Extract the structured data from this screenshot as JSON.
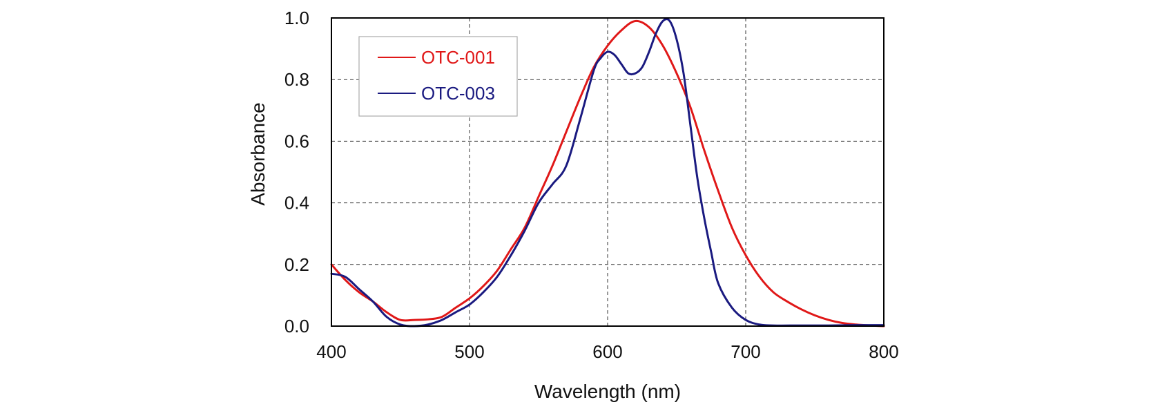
{
  "chart_data": {
    "type": "line",
    "title": "",
    "xlabel": "Wavelength (nm)",
    "ylabel": "Absorbance",
    "xlim": [
      400,
      800
    ],
    "ylim": [
      0.0,
      1.0
    ],
    "grid": true,
    "legend_position": "top-left",
    "x_tick_labels": [
      "400",
      "500",
      "600",
      "700",
      "800"
    ],
    "y_tick_labels": [
      "0.0",
      "0.2",
      "0.4",
      "0.6",
      "0.8",
      "1.0"
    ],
    "series": [
      {
        "name": "OTC-001",
        "color": "#e01818",
        "points": [
          [
            400,
            0.2
          ],
          [
            410,
            0.15
          ],
          [
            420,
            0.11
          ],
          [
            430,
            0.08
          ],
          [
            440,
            0.045
          ],
          [
            450,
            0.02
          ],
          [
            460,
            0.02
          ],
          [
            470,
            0.022
          ],
          [
            480,
            0.03
          ],
          [
            490,
            0.06
          ],
          [
            500,
            0.09
          ],
          [
            510,
            0.13
          ],
          [
            520,
            0.18
          ],
          [
            530,
            0.25
          ],
          [
            540,
            0.32
          ],
          [
            550,
            0.42
          ],
          [
            560,
            0.52
          ],
          [
            570,
            0.63
          ],
          [
            580,
            0.74
          ],
          [
            590,
            0.84
          ],
          [
            600,
            0.91
          ],
          [
            610,
            0.96
          ],
          [
            620,
            0.99
          ],
          [
            630,
            0.97
          ],
          [
            640,
            0.91
          ],
          [
            650,
            0.82
          ],
          [
            660,
            0.71
          ],
          [
            670,
            0.57
          ],
          [
            680,
            0.44
          ],
          [
            690,
            0.32
          ],
          [
            700,
            0.23
          ],
          [
            710,
            0.16
          ],
          [
            720,
            0.11
          ],
          [
            730,
            0.08
          ],
          [
            740,
            0.055
          ],
          [
            750,
            0.035
          ],
          [
            760,
            0.02
          ],
          [
            770,
            0.01
          ],
          [
            780,
            0.005
          ],
          [
            790,
            0.002
          ],
          [
            800,
            0.0
          ]
        ]
      },
      {
        "name": "OTC-003",
        "color": "#1a1a80",
        "points": [
          [
            400,
            0.17
          ],
          [
            410,
            0.16
          ],
          [
            420,
            0.12
          ],
          [
            430,
            0.08
          ],
          [
            440,
            0.03
          ],
          [
            450,
            0.005
          ],
          [
            460,
            0.0
          ],
          [
            470,
            0.005
          ],
          [
            480,
            0.02
          ],
          [
            490,
            0.045
          ],
          [
            500,
            0.07
          ],
          [
            510,
            0.11
          ],
          [
            520,
            0.16
          ],
          [
            530,
            0.23
          ],
          [
            540,
            0.31
          ],
          [
            550,
            0.4
          ],
          [
            560,
            0.46
          ],
          [
            570,
            0.52
          ],
          [
            580,
            0.67
          ],
          [
            590,
            0.83
          ],
          [
            595,
            0.87
          ],
          [
            600,
            0.89
          ],
          [
            605,
            0.88
          ],
          [
            610,
            0.85
          ],
          [
            615,
            0.82
          ],
          [
            620,
            0.82
          ],
          [
            625,
            0.84
          ],
          [
            630,
            0.89
          ],
          [
            635,
            0.95
          ],
          [
            640,
            0.99
          ],
          [
            645,
            0.99
          ],
          [
            650,
            0.93
          ],
          [
            655,
            0.82
          ],
          [
            660,
            0.65
          ],
          [
            665,
            0.48
          ],
          [
            670,
            0.35
          ],
          [
            675,
            0.24
          ],
          [
            680,
            0.14
          ],
          [
            690,
            0.06
          ],
          [
            700,
            0.02
          ],
          [
            710,
            0.005
          ],
          [
            720,
            0.002
          ],
          [
            740,
            0.002
          ],
          [
            760,
            0.002
          ],
          [
            780,
            0.003
          ],
          [
            800,
            0.003
          ]
        ]
      }
    ]
  }
}
